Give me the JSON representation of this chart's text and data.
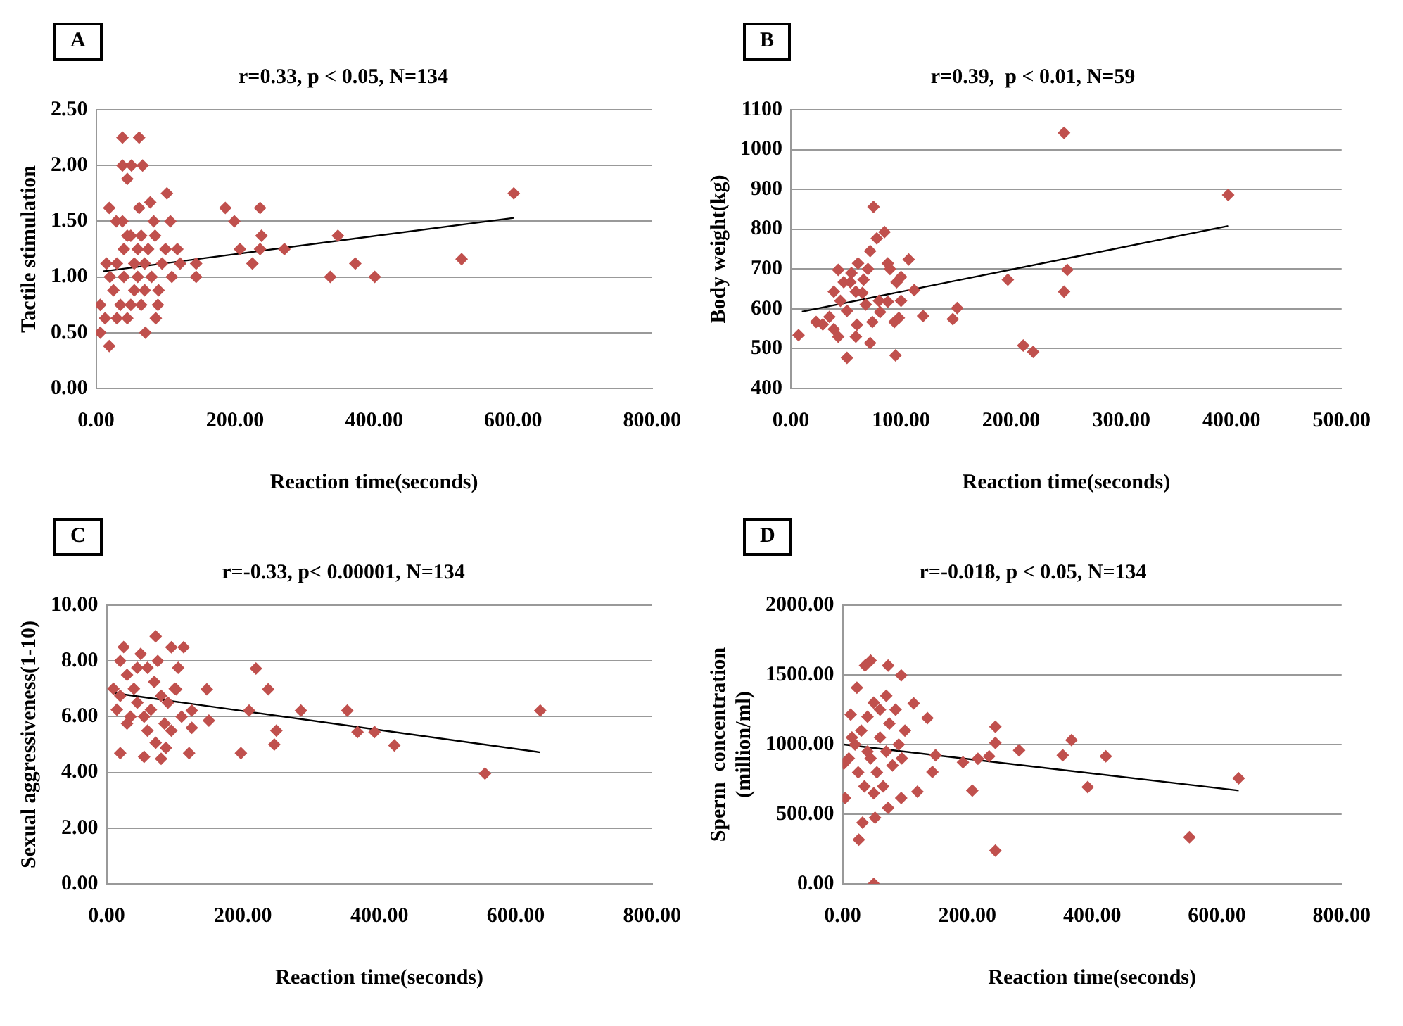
{
  "chart_data": [
    {
      "type": "scatter",
      "title": "r=0.33, p < 0.05, N=134",
      "xlabel": "Reaction time(seconds)",
      "ylabel": "Tactile stimulation",
      "annotations": [
        "A"
      ],
      "xlim": [
        0,
        800
      ],
      "xticks": [
        {
          "value": 0,
          "label": "0.00"
        },
        {
          "value": 200,
          "label": "200.00"
        },
        {
          "value": 400,
          "label": "400.00"
        },
        {
          "value": 600,
          "label": "600.00"
        },
        {
          "value": 800,
          "label": "800.00"
        }
      ],
      "ylim": [
        0,
        2.5
      ],
      "yticks": [
        {
          "value": 0,
          "label": "0.00"
        },
        {
          "value": 0.5,
          "label": "0.50"
        },
        {
          "value": 1,
          "label": "1.00"
        },
        {
          "value": 1.5,
          "label": "1.50"
        },
        {
          "value": 2,
          "label": "2.00"
        },
        {
          "value": 2.5,
          "label": "2.50"
        }
      ],
      "grid": "y",
      "marker": "diamond",
      "series": [
        {
          "type": "scatter",
          "color": "#c0504d",
          "x": [
            38,
            62,
            38,
            51,
            67,
            45,
            19,
            62,
            78,
            102,
            29,
            38,
            83,
            107,
            186,
            199,
            236,
            238,
            207,
            236,
            271,
            225,
            348,
            373,
            337,
            401,
            526,
            601,
            117,
            144,
            144,
            121,
            109,
            6,
            19,
            71,
            86,
            89,
            6,
            13,
            20,
            30,
            40,
            50,
            60,
            70,
            80,
            90,
            25,
            35,
            45,
            55,
            65,
            75,
            85,
            95,
            40,
            55,
            30,
            50,
            60,
            70,
            100,
            15,
            45,
            65
          ],
          "values": [
            2.25,
            2.25,
            2.0,
            2.0,
            2.0,
            1.88,
            1.62,
            1.62,
            1.67,
            1.75,
            1.5,
            1.5,
            1.5,
            1.5,
            1.62,
            1.5,
            1.62,
            1.37,
            1.25,
            1.25,
            1.25,
            1.12,
            1.37,
            1.12,
            1.0,
            1.0,
            1.16,
            1.75,
            1.25,
            1.0,
            1.12,
            1.12,
            1.0,
            0.5,
            0.38,
            0.5,
            0.63,
            0.75,
            0.75,
            0.63,
            1.0,
            1.12,
            1.25,
            1.37,
            1.25,
            1.12,
            1.0,
            0.88,
            0.88,
            0.75,
            0.63,
            0.88,
            0.75,
            1.25,
            1.37,
            1.12,
            1.0,
            1.12,
            0.63,
            0.75,
            1.0,
            0.88,
            1.25,
            1.12,
            1.37,
            1.37
          ]
        },
        {
          "type": "line",
          "color": "#000000",
          "x": [
            10,
            601
          ],
          "values": [
            1.05,
            1.53
          ],
          "marker": "none"
        }
      ]
    },
    {
      "type": "scatter",
      "title": "r=0.39,  p < 0.01, N=59",
      "xlabel": "Reaction time(seconds)",
      "ylabel": "Body weight(kg)",
      "annotations": [
        "B"
      ],
      "xlim": [
        0,
        500
      ],
      "xticks": [
        {
          "value": 0,
          "label": "0.00"
        },
        {
          "value": 100,
          "label": "100.00"
        },
        {
          "value": 200,
          "label": "200.00"
        },
        {
          "value": 300,
          "label": "300.00"
        },
        {
          "value": 400,
          "label": "400.00"
        },
        {
          "value": 500,
          "label": "500.00"
        }
      ],
      "ylim": [
        400,
        1100
      ],
      "yticks": [
        400,
        500,
        600,
        700,
        800,
        900,
        1000,
        1100
      ],
      "grid": "y",
      "marker": "diamond",
      "series": [
        {
          "type": "scatter",
          "color": "#c0504d",
          "x": [
            248,
            397,
            75,
            85,
            78,
            72,
            107,
            88,
            61,
            43,
            251,
            197,
            248,
            112,
            39,
            54,
            66,
            96,
            88,
            68,
            51,
            81,
            120,
            147,
            151,
            74,
            23,
            29,
            39,
            43,
            59,
            72,
            51,
            95,
            7,
            211,
            220,
            94,
            48,
            59,
            98,
            55,
            65,
            90,
            100,
            45,
            80,
            70,
            60,
            35,
            100
          ],
          "values": [
            1042,
            886,
            856,
            793,
            777,
            745,
            724,
            714,
            714,
            698,
            698,
            673,
            643,
            647,
            643,
            667,
            673,
            667,
            618,
            611,
            595,
            592,
            582,
            574,
            602,
            567,
            567,
            561,
            549,
            530,
            530,
            514,
            477,
            483,
            534,
            508,
            492,
            567,
            667,
            643,
            577,
            690,
            640,
            700,
            680,
            620,
            620,
            700,
            560,
            580,
            620
          ]
        },
        {
          "type": "line",
          "color": "#000000",
          "x": [
            10,
            397
          ],
          "values": [
            593,
            808
          ],
          "marker": "none"
        }
      ]
    },
    {
      "type": "scatter",
      "title": "r=-0.33, p< 0.00001, N=134",
      "xlabel": "Reaction time(seconds)",
      "ylabel": "Sexual aggressiveness(1-10)",
      "annotations": [
        "C"
      ],
      "xlim": [
        0,
        800
      ],
      "xticks": [
        {
          "value": 0,
          "label": "0.00"
        },
        {
          "value": 200,
          "label": "200.00"
        },
        {
          "value": 400,
          "label": "400.00"
        },
        {
          "value": 600,
          "label": "600.00"
        },
        {
          "value": 800,
          "label": "800.00"
        }
      ],
      "ylim": [
        0,
        10
      ],
      "yticks": [
        {
          "value": 0,
          "label": "0.00"
        },
        {
          "value": 2,
          "label": "2.00"
        },
        {
          "value": 4,
          "label": "4.00"
        },
        {
          "value": 6,
          "label": "6.00"
        },
        {
          "value": 8,
          "label": "8.00"
        },
        {
          "value": 10,
          "label": "10.00"
        }
      ],
      "grid": "y",
      "marker": "diamond",
      "series": [
        {
          "type": "scatter",
          "color": "#c0504d",
          "x": [
            636,
            555,
            422,
            393,
            368,
            353,
            285,
            249,
            246,
            237,
            219,
            209,
            197,
            147,
            150,
            125,
            125,
            121,
            113,
            95,
            72,
            20,
            55,
            80,
            87,
            72,
            102,
            10,
            20,
            25,
            30,
            40,
            45,
            50,
            55,
            60,
            65,
            70,
            80,
            85,
            90,
            100,
            15,
            35,
            45,
            75,
            95,
            30,
            60,
            110,
            20,
            105
          ],
          "values": [
            6.22,
            3.96,
            4.97,
            5.45,
            5.45,
            6.22,
            6.22,
            5.5,
            5.0,
            6.98,
            7.73,
            6.22,
            4.69,
            6.98,
            5.86,
            6.22,
            5.6,
            4.69,
            8.49,
            8.49,
            8.88,
            4.69,
            4.56,
            4.49,
            4.88,
            5.06,
            6.98,
            7.0,
            8.0,
            8.5,
            7.5,
            7.0,
            6.5,
            8.25,
            6.0,
            7.75,
            6.25,
            7.25,
            6.75,
            5.75,
            6.5,
            7.0,
            6.25,
            6.0,
            7.75,
            8.0,
            5.5,
            5.75,
            5.5,
            6.0,
            6.75,
            7.75
          ]
        },
        {
          "type": "line",
          "color": "#000000",
          "x": [
            10,
            636
          ],
          "values": [
            6.85,
            4.72
          ],
          "marker": "none"
        }
      ]
    },
    {
      "type": "scatter",
      "title": "r=-0.018, p < 0.05, N=134",
      "xlabel": "Reaction time(seconds)",
      "ylabel": "Sperm  concentration\n(million/ml)",
      "annotations": [
        "D"
      ],
      "xlim": [
        0,
        800
      ],
      "xticks": [
        {
          "value": 0,
          "label": "0.00"
        },
        {
          "value": 200,
          "label": "200.00"
        },
        {
          "value": 400,
          "label": "400.00"
        },
        {
          "value": 600,
          "label": "600.00"
        },
        {
          "value": 800,
          "label": "800.00"
        }
      ],
      "ylim": [
        0,
        2000
      ],
      "yticks": [
        {
          "value": 0,
          "label": "0.00"
        },
        {
          "value": 500,
          "label": "500.00"
        },
        {
          "value": 1000,
          "label": "1000.00"
        },
        {
          "value": 1500,
          "label": "1500.00"
        },
        {
          "value": 2000,
          "label": "2000.00"
        }
      ],
      "grid": "y",
      "marker": "diamond",
      "series": [
        {
          "type": "scatter",
          "color": "#c0504d",
          "x": [
            635,
            556,
            422,
            393,
            367,
            353,
            283,
            245,
            245,
            245,
            235,
            217,
            208,
            193,
            149,
            144,
            136,
            120,
            114,
            94,
            73,
            45,
            36,
            23,
            13,
            26,
            32,
            52,
            50,
            4,
            2,
            73,
            94,
            10,
            20,
            30,
            40,
            50,
            60,
            70,
            80,
            90,
            25,
            35,
            45,
            55,
            65,
            75,
            85,
            95,
            15,
            40,
            60,
            70,
            50,
            100
          ],
          "values": [
            757,
            335,
            915,
            694,
            1032,
            923,
            958,
            1127,
            1011,
            239,
            915,
            898,
            669,
            873,
            923,
            803,
            1190,
            662,
            1296,
            1496,
            1567,
            1602,
            1567,
            1408,
            1215,
            317,
            440,
            475,
            0,
            616,
            863,
            546,
            616,
            900,
            1000,
            1100,
            1200,
            1300,
            1050,
            950,
            850,
            1000,
            800,
            700,
            900,
            800,
            700,
            1150,
            1250,
            900,
            1050,
            950,
            1250,
            1350,
            650,
            1100
          ]
        },
        {
          "type": "line",
          "color": "#000000",
          "x": [
            2,
            635
          ],
          "values": [
            1000,
            670
          ],
          "marker": "none"
        }
      ]
    }
  ]
}
